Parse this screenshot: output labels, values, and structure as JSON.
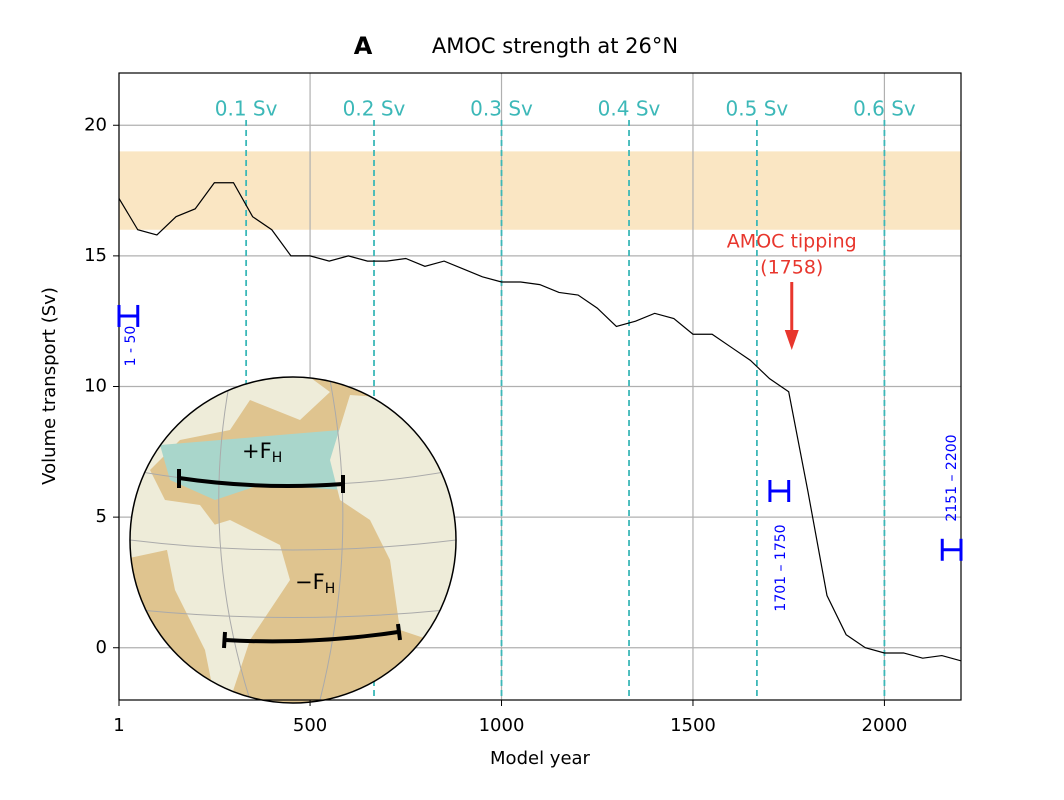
{
  "chart_data": {
    "type": "line",
    "panel_label": "A",
    "title": "AMOC strength at 26°N",
    "x_label": "Model year",
    "y_label": "Volume transport (Sv)",
    "xlim": [
      1,
      2200
    ],
    "ylim": [
      -2,
      22
    ],
    "xticks": [
      1,
      500,
      1000,
      1500,
      2000
    ],
    "yticks": [
      0,
      5,
      10,
      15,
      20
    ],
    "grid": true,
    "band": {
      "range": [
        16,
        19
      ],
      "color": "#fae6c3"
    },
    "forcing_lines": {
      "color": "#3cb8b8",
      "lines": [
        {
          "x": 333,
          "label": "0.1 Sv"
        },
        {
          "x": 667,
          "label": "0.2 Sv"
        },
        {
          "x": 1000,
          "label": "0.3 Sv"
        },
        {
          "x": 1333,
          "label": "0.4 Sv"
        },
        {
          "x": 1667,
          "label": "0.5 Sv"
        },
        {
          "x": 2000,
          "label": "0.6 Sv"
        }
      ]
    },
    "series": [
      {
        "name": "AMOC",
        "color": "#000000",
        "x": [
          1,
          50,
          100,
          150,
          200,
          250,
          300,
          350,
          400,
          450,
          500,
          550,
          600,
          650,
          700,
          750,
          800,
          850,
          900,
          950,
          1000,
          1050,
          1100,
          1150,
          1200,
          1250,
          1300,
          1350,
          1400,
          1450,
          1500,
          1550,
          1600,
          1650,
          1700,
          1750,
          1800,
          1850,
          1900,
          1950,
          2000,
          2050,
          2100,
          2150,
          2200
        ],
        "values": [
          17.2,
          16.0,
          15.8,
          16.5,
          16.8,
          17.8,
          17.8,
          16.5,
          16.0,
          15.0,
          15.0,
          14.8,
          15.0,
          14.8,
          14.8,
          14.9,
          14.6,
          14.8,
          14.5,
          14.2,
          14.0,
          14.0,
          13.9,
          13.6,
          13.5,
          13.0,
          12.3,
          12.5,
          12.8,
          12.6,
          12.0,
          12.0,
          11.5,
          11.0,
          10.3,
          9.8,
          6.0,
          2.0,
          0.5,
          0.0,
          -0.2,
          -0.2,
          -0.4,
          -0.3,
          -0.5
        ]
      }
    ],
    "tipping": {
      "lines": [
        "AMOC tipping",
        "(1758)"
      ],
      "x": 1758,
      "color": "#e8362d"
    },
    "means": {
      "color": "#0000ff",
      "items": [
        {
          "label": "1 - 50",
          "x_range": [
            1,
            50
          ],
          "value": 12.7
        },
        {
          "label": "1701 – 1750",
          "x_range": [
            1701,
            1750
          ],
          "value": 6.0
        },
        {
          "label": "2151 – 2200",
          "x_range": [
            2151,
            2200
          ],
          "value": 3.75
        }
      ]
    },
    "inset_labels": [
      {
        "text": "+F",
        "sub": "H"
      },
      {
        "text": "−F",
        "sub": "H"
      }
    ]
  }
}
